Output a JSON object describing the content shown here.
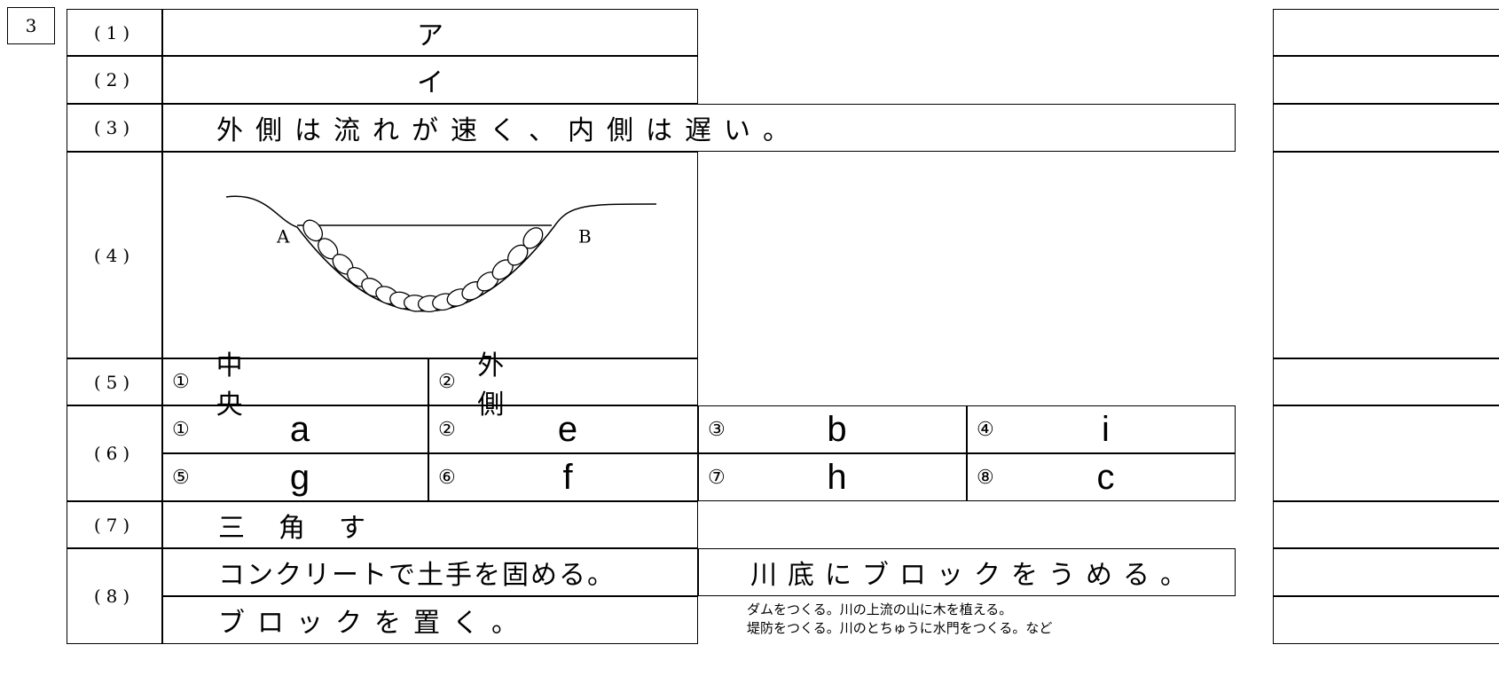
{
  "section": "3",
  "q1": {
    "label": "(1)",
    "answer": "ア"
  },
  "q2": {
    "label": "(2)",
    "answer": "イ"
  },
  "q3": {
    "label": "(3)",
    "answer": "外側は流れが速く、内側は遅い。"
  },
  "q4": {
    "label": "(4)",
    "point_a": "A",
    "point_b": "B"
  },
  "q5": {
    "label": "(5)",
    "answers": [
      {
        "number": "①",
        "text": "中央"
      },
      {
        "number": "②",
        "text": "外側"
      }
    ]
  },
  "q6": {
    "label": "(6)",
    "answers": [
      {
        "number": "①",
        "text": "a"
      },
      {
        "number": "②",
        "text": "e"
      },
      {
        "number": "③",
        "text": "b"
      },
      {
        "number": "④",
        "text": "i"
      },
      {
        "number": "⑤",
        "text": "g"
      },
      {
        "number": "⑥",
        "text": "f"
      },
      {
        "number": "⑦",
        "text": "h"
      },
      {
        "number": "⑧",
        "text": "c"
      }
    ]
  },
  "q7": {
    "label": "(7)",
    "answer": "三角す"
  },
  "q8": {
    "label": "(8)",
    "answers": [
      "コンクリートで土手を固める。",
      "川底にブロックをうめる。",
      "ブロックを置く。"
    ],
    "other_answers": [
      "ダムをつくる。川の上流の山に木を植える。",
      "堤防をつくる。川のとちゅうに水門をつくる。など"
    ]
  }
}
